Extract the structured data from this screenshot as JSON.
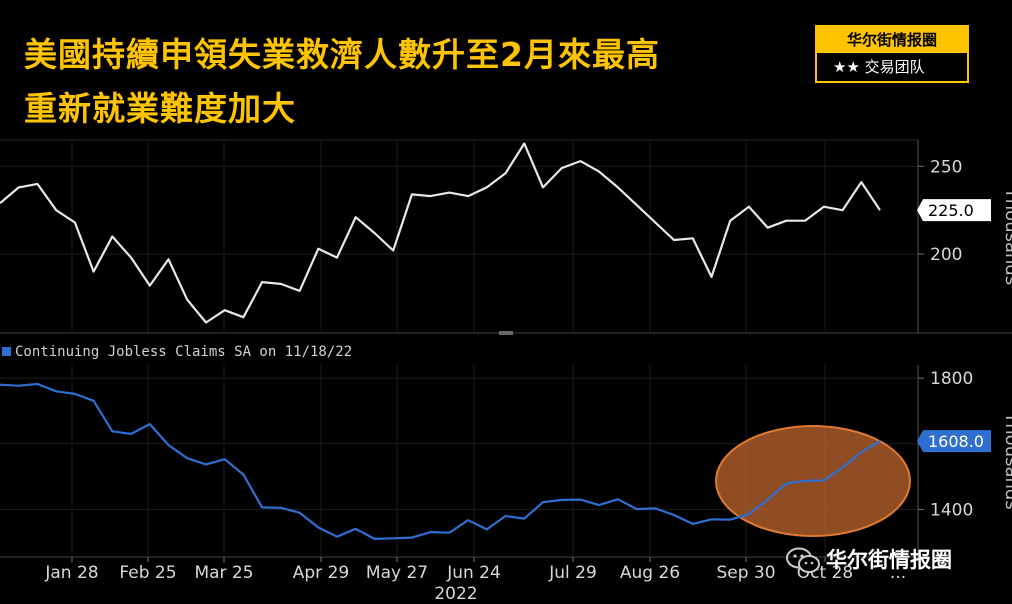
{
  "headline": {
    "line1": "美國持續申領失業救濟人數升至2月來最高",
    "line2": "重新就業難度加大"
  },
  "brand": {
    "name": "华尔街情报圈",
    "subtitle": "★★ 交易团队",
    "watermark": "华尔街情报圈",
    "watermark_icon": "wechat-icon"
  },
  "colors": {
    "headline": "#ffc400",
    "top_series": "#e8e8e8",
    "bottom_series": "#2f6fd1",
    "highlight": "#e07a33",
    "background": "#000000"
  },
  "chart_data": [
    {
      "type": "line",
      "panel": "top",
      "ylabel": "Thousands",
      "ylim": [
        155,
        265
      ],
      "yticks": [
        200,
        250
      ],
      "last_value_label": "225.0",
      "series": [
        {
          "values": [
            229,
            238,
            240,
            225,
            218,
            190,
            210,
            198,
            182,
            197,
            174,
            161,
            168,
            164,
            184,
            183,
            179,
            203,
            198,
            221,
            212,
            202,
            234,
            233,
            235,
            233,
            238,
            246,
            263,
            238,
            249,
            253,
            247,
            238,
            228,
            218,
            208,
            209,
            187,
            219,
            227,
            215,
            219,
            219,
            227,
            225,
            241,
            225
          ]
        }
      ]
    },
    {
      "type": "line",
      "panel": "bottom",
      "ylabel": "Thousands",
      "ylim": [
        1255,
        1840
      ],
      "yticks": [
        1400,
        1600,
        1800
      ],
      "last_value_label": "1608.0",
      "legend": "Continuing Jobless Claims SA on 11/18/22",
      "x_labels": [
        "Jan 28",
        "Feb 25",
        "Mar 25",
        "Apr 29",
        "May 27",
        "Jun 24",
        "Jul 29",
        "Aug 26",
        "Sep 30",
        "Oct 28",
        "..."
      ],
      "x_year": "2022",
      "series": [
        {
          "name": "Continuing Jobless Claims SA on 11/18/22",
          "values": [
            1780,
            1777,
            1782,
            1760,
            1752,
            1731,
            1638,
            1630,
            1660,
            1596,
            1556,
            1537,
            1553,
            1506,
            1406,
            1405,
            1390,
            1345,
            1317,
            1341,
            1310,
            1312,
            1314,
            1331,
            1329,
            1367,
            1339,
            1380,
            1372,
            1422,
            1429,
            1430,
            1413,
            1431,
            1401,
            1403,
            1383,
            1356,
            1370,
            1369,
            1385,
            1430,
            1479,
            1487,
            1488,
            1528,
            1574,
            1608
          ]
        }
      ]
    }
  ]
}
